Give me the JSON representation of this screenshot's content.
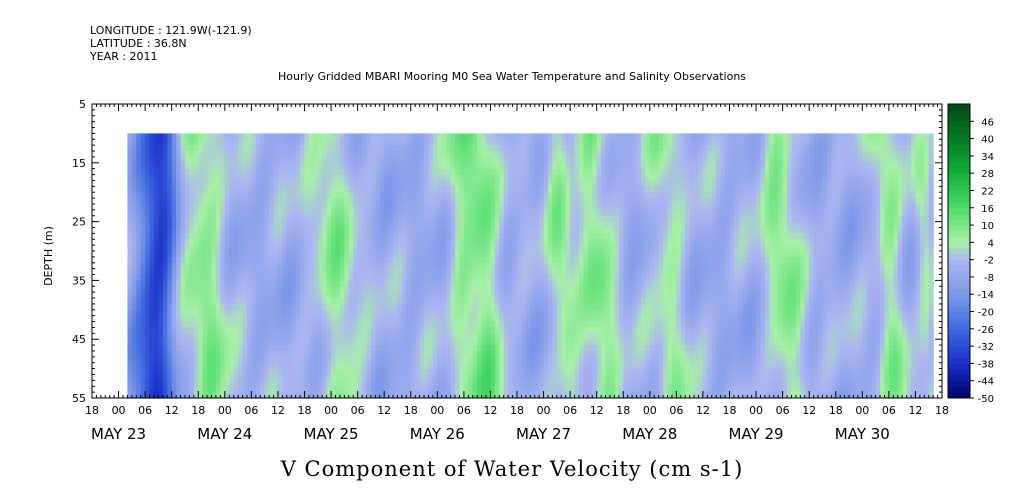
{
  "header": {
    "longitude": "LONGITUDE : 121.9W(-121.9)",
    "latitude": "LATITUDE : 36.8N",
    "year": "YEAR : 2011",
    "title": "Hourly Gridded MBARI Mooring M0 Sea Water Temperature and Salinity Observations"
  },
  "chart_data": {
    "type": "heatmap",
    "title": "Hourly Gridded MBARI Mooring M0 Sea Water Temperature and Salinity Observations",
    "xlabel": "V Component of Water Velocity (cm s-1)",
    "ylabel": "DEPTH (m)",
    "x_unit": "hours since 2011-05-23 00:00 (hour tick labels)",
    "xlim": [
      -6,
      186
    ],
    "ylim": [
      55,
      5
    ],
    "y_inverted": true,
    "y_ticks": [
      "5",
      "15",
      "25",
      "35",
      "45",
      "55"
    ],
    "x_hour_ticks": [
      {
        "h": -6,
        "label": "18"
      },
      {
        "h": 0,
        "label": "00"
      },
      {
        "h": 6,
        "label": "06"
      },
      {
        "h": 12,
        "label": "12"
      },
      {
        "h": 18,
        "label": "18"
      },
      {
        "h": 24,
        "label": "00"
      },
      {
        "h": 30,
        "label": "06"
      },
      {
        "h": 36,
        "label": "12"
      },
      {
        "h": 42,
        "label": "18"
      },
      {
        "h": 48,
        "label": "00"
      },
      {
        "h": 54,
        "label": "06"
      },
      {
        "h": 60,
        "label": "12"
      },
      {
        "h": 66,
        "label": "18"
      },
      {
        "h": 72,
        "label": "00"
      },
      {
        "h": 78,
        "label": "06"
      },
      {
        "h": 84,
        "label": "12"
      },
      {
        "h": 90,
        "label": "18"
      },
      {
        "h": 96,
        "label": "00"
      },
      {
        "h": 102,
        "label": "06"
      },
      {
        "h": 108,
        "label": "12"
      },
      {
        "h": 114,
        "label": "18"
      },
      {
        "h": 120,
        "label": "00"
      },
      {
        "h": 126,
        "label": "06"
      },
      {
        "h": 132,
        "label": "12"
      },
      {
        "h": 138,
        "label": "18"
      },
      {
        "h": 144,
        "label": "00"
      },
      {
        "h": 150,
        "label": "06"
      },
      {
        "h": 156,
        "label": "12"
      },
      {
        "h": 162,
        "label": "18"
      },
      {
        "h": 168,
        "label": "00"
      },
      {
        "h": 174,
        "label": "06"
      },
      {
        "h": 180,
        "label": "12"
      },
      {
        "h": 186,
        "label": "18"
      }
    ],
    "x_date_labels": [
      {
        "h": 0,
        "label": "MAY 23"
      },
      {
        "h": 24,
        "label": "MAY 24"
      },
      {
        "h": 48,
        "label": "MAY 25"
      },
      {
        "h": 72,
        "label": "MAY 26"
      },
      {
        "h": 96,
        "label": "MAY 27"
      },
      {
        "h": 120,
        "label": "MAY 28"
      },
      {
        "h": 144,
        "label": "MAY 29"
      },
      {
        "h": 168,
        "label": "MAY 30"
      }
    ],
    "data_extent": {
      "hour_start": 2,
      "hour_end": 184,
      "depth_top": 10,
      "depth_bottom": 55
    },
    "colorbar": {
      "range": [
        -50,
        52
      ],
      "labels": [
        "46",
        "40",
        "34",
        "28",
        "22",
        "16",
        "10",
        "4",
        "-2",
        "-8",
        "-14",
        "-20",
        "-26",
        "-32",
        "-38",
        "-44",
        "-50"
      ],
      "stops": [
        {
          "v": -50,
          "color": "#000070"
        },
        {
          "v": -38,
          "color": "#1a2fc8"
        },
        {
          "v": -26,
          "color": "#3f6ae0"
        },
        {
          "v": -14,
          "color": "#7d98e8"
        },
        {
          "v": -2,
          "color": "#aab6f0"
        },
        {
          "v": 4,
          "color": "#a8f0a8"
        },
        {
          "v": 16,
          "color": "#4edc6a"
        },
        {
          "v": 28,
          "color": "#12b03a"
        },
        {
          "v": 40,
          "color": "#067a22"
        },
        {
          "v": 52,
          "color": "#034a12"
        }
      ]
    },
    "bands": [
      {
        "center_hour": 9,
        "width_hours": 4,
        "value": -30
      },
      {
        "center_hour": 17,
        "width_hours": 5,
        "value": 14
      },
      {
        "center_hour": 47,
        "width_hours": 5,
        "value": 12
      },
      {
        "center_hour": 75,
        "width_hours": 3,
        "value": 8
      },
      {
        "center_hour": 80,
        "width_hours": 4,
        "value": 16
      },
      {
        "center_hour": 98,
        "width_hours": 3,
        "value": 12
      },
      {
        "center_hour": 106,
        "width_hours": 4,
        "value": 14
      },
      {
        "center_hour": 122,
        "width_hours": 4,
        "value": 10
      },
      {
        "center_hour": 148,
        "width_hours": 4,
        "value": 14
      },
      {
        "center_hour": 172,
        "width_hours": 3,
        "value": 12
      },
      {
        "center_hour": 180,
        "width_hours": 2,
        "value": 8
      }
    ]
  }
}
